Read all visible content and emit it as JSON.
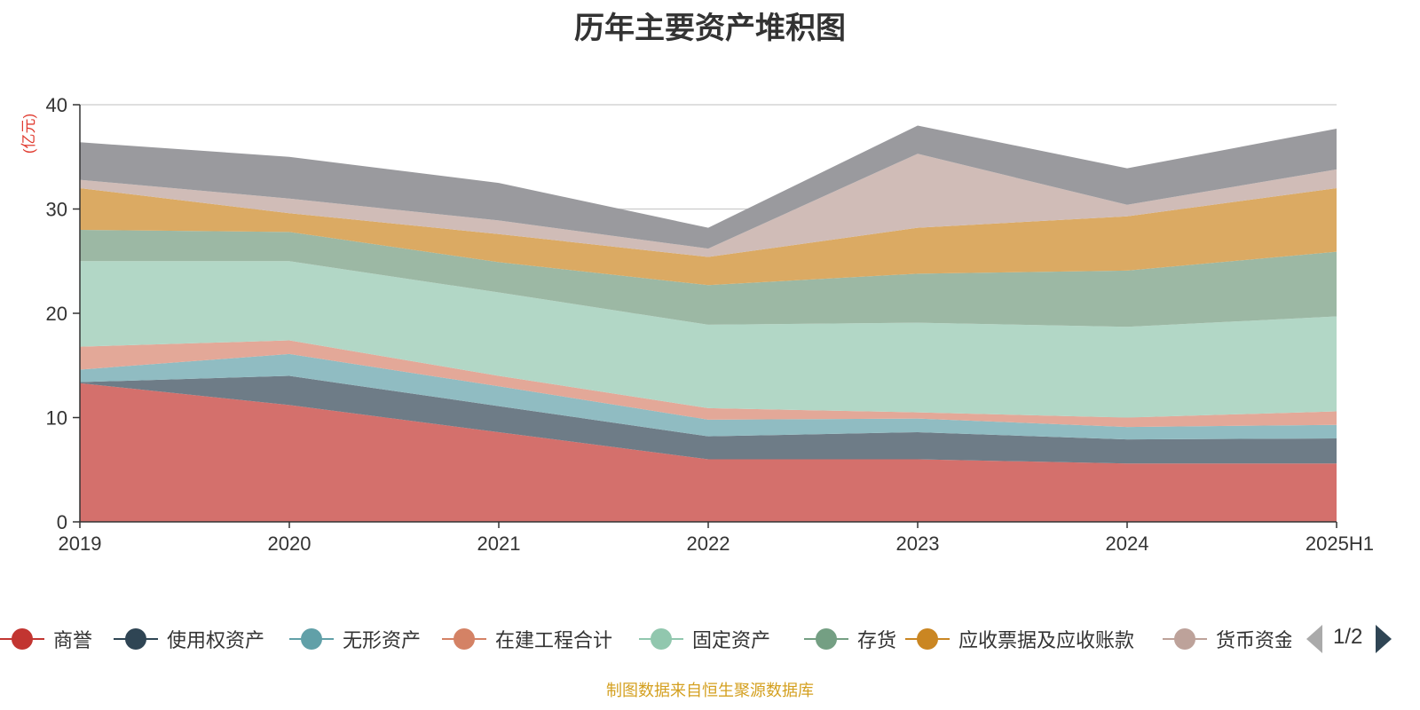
{
  "title": "历年主要资产堆积图",
  "unit_label": "(亿元)",
  "footer": "制图数据来自恒生聚源数据库",
  "pager": {
    "text": "1/2"
  },
  "legend_items": [
    {
      "label": "商誉",
      "color": "#c23531"
    },
    {
      "label": "使用权资产",
      "color": "#2f4554"
    },
    {
      "label": "无形资产",
      "color": "#61a0a8"
    },
    {
      "label": "在建工程合计",
      "color": "#d48265"
    },
    {
      "label": "固定资产",
      "color": "#91c7ae"
    },
    {
      "label": "存货",
      "color": "#749f83"
    },
    {
      "label": "应收票据及应收账款",
      "color": "#ca8622"
    },
    {
      "label": "货币资金",
      "color": "#bda29a"
    }
  ],
  "chart_data": {
    "type": "area",
    "stacked": true,
    "title": "历年主要资产堆积图",
    "ylabel": "(亿元)",
    "ylim": [
      0,
      40
    ],
    "yticks": [
      0,
      10,
      20,
      30,
      40
    ],
    "x": [
      "2019",
      "2020",
      "2021",
      "2022",
      "2023",
      "2024",
      "2025H1"
    ],
    "grid": true,
    "legend_position": "bottom",
    "series": [
      {
        "name": "商誉",
        "color": "#d4706c",
        "values": [
          13.3,
          11.2,
          8.6,
          6.0,
          6.0,
          5.6,
          5.6
        ]
      },
      {
        "name": "使用权资产",
        "color": "#6e7c87",
        "values": [
          0.1,
          2.8,
          2.5,
          2.2,
          2.6,
          2.3,
          2.4
        ]
      },
      {
        "name": "无形资产",
        "color": "#90bcc2",
        "values": [
          1.2,
          2.1,
          1.9,
          1.6,
          1.3,
          1.2,
          1.3
        ]
      },
      {
        "name": "在建工程合计",
        "color": "#e3a898",
        "values": [
          2.2,
          1.3,
          1.0,
          1.1,
          0.6,
          0.9,
          1.3
        ]
      },
      {
        "name": "固定资产",
        "color": "#b2d7c6",
        "values": [
          8.2,
          7.6,
          8.0,
          8.0,
          8.6,
          8.7,
          9.1
        ]
      },
      {
        "name": "存货",
        "color": "#9cb8a4",
        "values": [
          3.0,
          2.8,
          2.9,
          3.8,
          4.7,
          5.4,
          6.2
        ]
      },
      {
        "name": "应收票据及应收账款",
        "color": "#dbaa63",
        "values": [
          4.0,
          1.8,
          2.7,
          2.7,
          4.4,
          5.2,
          6.1
        ]
      },
      {
        "name": "货币资金",
        "color": "#d0bcb7",
        "values": [
          0.8,
          1.4,
          1.3,
          0.8,
          7.1,
          1.1,
          1.8
        ]
      },
      {
        "name": "",
        "color": "#9a9a9e",
        "values": [
          3.6,
          4.0,
          3.6,
          2.0,
          2.7,
          3.5,
          3.9
        ]
      }
    ]
  }
}
